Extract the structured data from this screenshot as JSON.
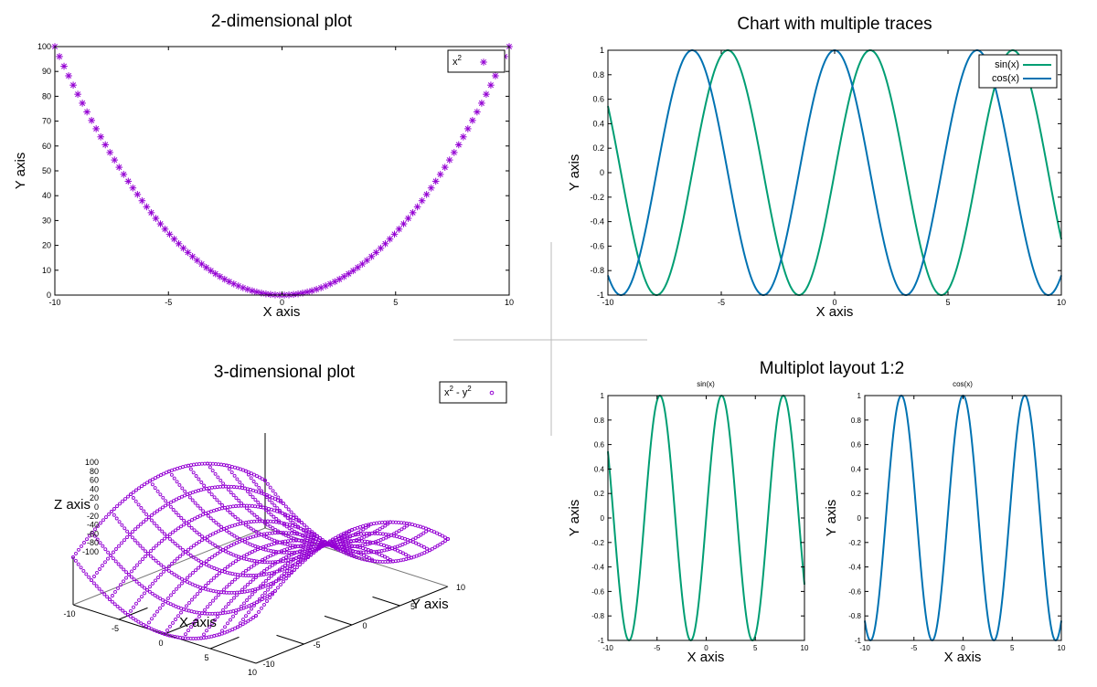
{
  "colors": {
    "purple": "#9400D3",
    "green": "#009E73",
    "blue": "#0072B2",
    "frame": "#000000",
    "divider": "#BBBBBB"
  },
  "chart_data": [
    {
      "id": "plot2d",
      "type": "scatter",
      "title": "2-dimensional plot",
      "xlabel": "X axis",
      "ylabel": "Y axis",
      "xlim": [
        -10,
        10
      ],
      "ylim": [
        0,
        100
      ],
      "xticks": [
        "-10",
        "-5",
        "0",
        "5",
        "10"
      ],
      "yticks": [
        "0",
        "10",
        "20",
        "30",
        "40",
        "50",
        "60",
        "70",
        "80",
        "90",
        "100"
      ],
      "legend": {
        "label": "x",
        "sup": "2",
        "placement": "top-right"
      },
      "series": [
        {
          "name": "x^2",
          "function": "x^2",
          "samples": 100,
          "marker": "asterisk",
          "color": "#9400D3"
        }
      ]
    },
    {
      "id": "plotTraces",
      "type": "line",
      "title": "Chart with multiple traces",
      "xlabel": "X axis",
      "ylabel": "Y axis",
      "xlim": [
        -10,
        10
      ],
      "ylim": [
        -1,
        1
      ],
      "xticks": [
        "-10",
        "-5",
        "0",
        "5",
        "10"
      ],
      "yticks": [
        "-1",
        "-0.8",
        "-0.6",
        "-0.4",
        "-0.2",
        "0",
        "0.2",
        "0.4",
        "0.6",
        "0.8",
        "1"
      ],
      "legend": {
        "placement": "top-right"
      },
      "series": [
        {
          "name": "sin(x)",
          "function": "sin",
          "color": "#009E73"
        },
        {
          "name": "cos(x)",
          "function": "cos",
          "color": "#0072B2"
        }
      ]
    },
    {
      "id": "plot3d",
      "type": "surface",
      "title": "3-dimensional plot",
      "xlabel": "X axis",
      "ylabel": "Y axis",
      "zlabel": "Z axis",
      "xlim": [
        -10,
        10
      ],
      "ylim": [
        -10,
        10
      ],
      "zlim": [
        -100,
        100
      ],
      "xticks": [
        "-10",
        "-5",
        "0",
        "5",
        "10"
      ],
      "yticks": [
        "-10",
        "-5",
        "0",
        "5",
        "10"
      ],
      "zticks": [
        "100",
        "80",
        "60",
        "40",
        "20",
        "0",
        "-20",
        "-40",
        "-60",
        "-80",
        "-100"
      ],
      "legend": {
        "label": "x",
        "sup1": "2",
        "mid": " - y",
        "sup2": "2",
        "placement": "top-right"
      },
      "series": [
        {
          "name": "x^2 - y^2",
          "function": "x^2 - y^2",
          "grid_lines": 11,
          "marker": "circle",
          "color": "#9400D3"
        }
      ]
    },
    {
      "id": "multiplot",
      "type": "line",
      "title": "Multiplot layout 1:2",
      "panels": [
        {
          "id": "mpSin",
          "subtitle": "sin(x)",
          "function": "sin",
          "color": "#009E73",
          "xlabel": "X axis",
          "ylabel": "Y axis",
          "xlim": [
            -10,
            10
          ],
          "ylim": [
            -1,
            1
          ],
          "xticks": [
            "-10",
            "-5",
            "0",
            "5",
            "10"
          ],
          "yticks": [
            "-1",
            "-0.8",
            "-0.6",
            "-0.4",
            "-0.2",
            "0",
            "0.2",
            "0.4",
            "0.6",
            "0.8",
            "1"
          ]
        },
        {
          "id": "mpCos",
          "subtitle": "cos(x)",
          "function": "cos",
          "color": "#0072B2",
          "xlabel": "X axis",
          "ylabel": "Y axis",
          "xlim": [
            -10,
            10
          ],
          "ylim": [
            -1,
            1
          ],
          "xticks": [
            "-10",
            "-5",
            "0",
            "5",
            "10"
          ],
          "yticks": [
            "-1",
            "-0.8",
            "-0.6",
            "-0.4",
            "-0.2",
            "0",
            "0.2",
            "0.4",
            "0.6",
            "0.8",
            "1"
          ]
        }
      ]
    }
  ]
}
